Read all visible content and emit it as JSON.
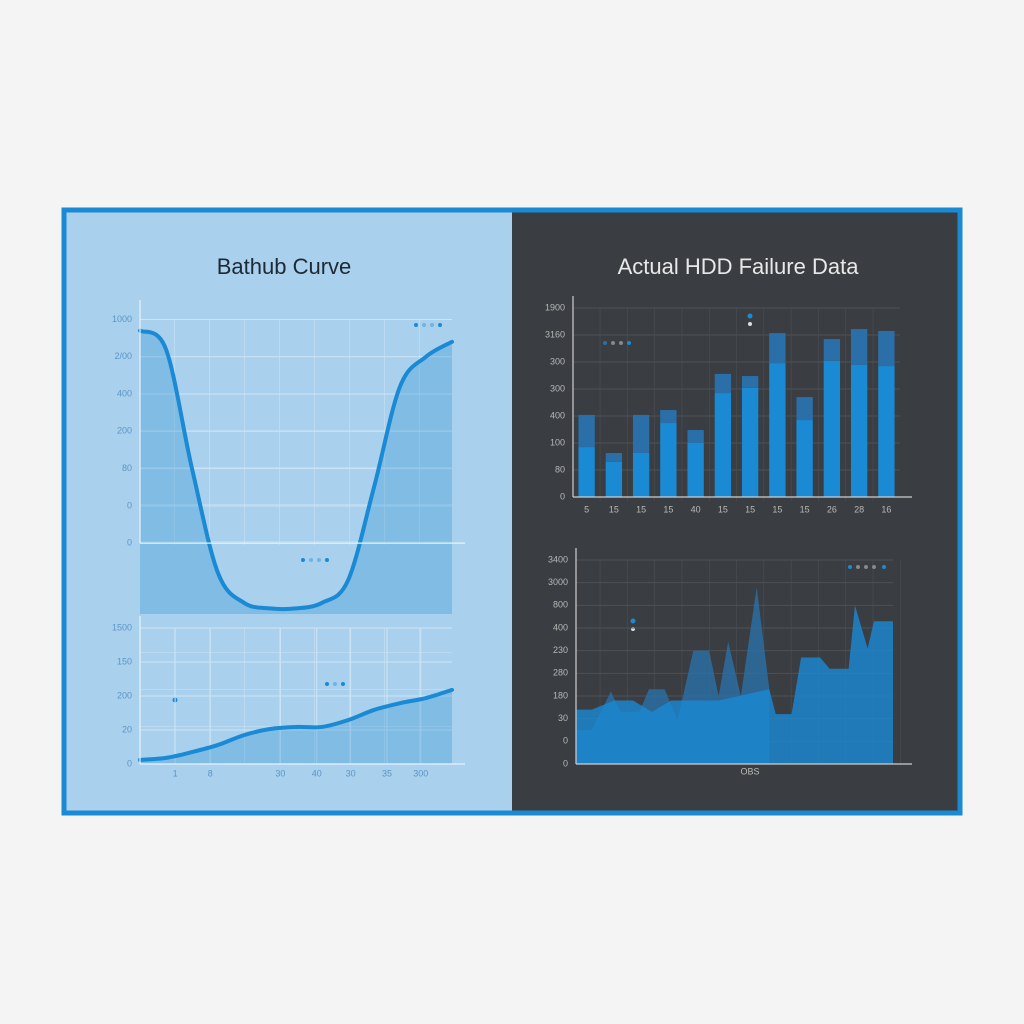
{
  "chart_data": [
    {
      "type": "line",
      "title": "Bathub Curve",
      "color": "#1a8ad4",
      "x": [
        0,
        1,
        2,
        3,
        4,
        5,
        6,
        7,
        8,
        9,
        10,
        11,
        12
      ],
      "xlim": [
        0,
        12
      ],
      "values": [
        5.7,
        5.2,
        2.0,
        -0.8,
        -1.6,
        -1.75,
        -1.75,
        -1.6,
        -1.0,
        1.5,
        4.2,
        5.0,
        5.4
      ],
      "ylim": [
        -1.9,
        6.2
      ],
      "yticks": [
        {
          "value": 6,
          "label": "1000"
        },
        {
          "value": 5,
          "label": "2/00"
        },
        {
          "value": 4,
          "label": "400"
        },
        {
          "value": 3,
          "label": "200"
        },
        {
          "value": 2,
          "label": "80"
        },
        {
          "value": 1,
          "label": "0"
        },
        0
      ]
    },
    {
      "type": "line",
      "color": "#1a8ad4",
      "x": [
        0,
        1,
        2,
        3,
        4,
        5,
        6,
        7,
        8,
        9,
        10,
        11,
        12
      ],
      "xlim": [
        0,
        12
      ],
      "values": [
        0.12,
        0.18,
        0.35,
        0.56,
        0.85,
        1.03,
        1.09,
        1.09,
        1.29,
        1.59,
        1.79,
        1.94,
        2.18
      ],
      "ylim": [
        0,
        4
      ],
      "yticks": [
        {
          "value": 4,
          "label": "1500"
        },
        {
          "value": 3,
          "label": "150"
        },
        {
          "value": 2,
          "label": "200"
        },
        {
          "value": 1,
          "label": "20"
        },
        0
      ],
      "xticks": [
        {
          "value": 1.35,
          "label": "1"
        },
        {
          "value": 2.7,
          "label": "8"
        },
        {
          "value": 5.4,
          "label": "30"
        },
        {
          "value": 6.8,
          "label": "40"
        },
        {
          "value": 8.1,
          "label": "30"
        },
        {
          "value": 9.5,
          "label": "35"
        },
        {
          "value": 10.8,
          "label": "300"
        }
      ]
    },
    {
      "type": "bar",
      "title": "Actual HDD Failure Data",
      "categories": [
        "5",
        "15",
        "15",
        "15",
        "40",
        "15",
        "15",
        "15",
        "15",
        "26",
        "28",
        "16"
      ],
      "series": [
        {
          "color": "#1a8ad4",
          "values": [
            1.85,
            1.3,
            1.63,
            2.74,
            2.0,
            3.85,
            4.04,
            4.96,
            2.85,
            5.04,
            4.9,
            4.85
          ]
        },
        {
          "color": "#2a6fa8",
          "values": [
            1.19,
            0.33,
            1.41,
            0.48,
            0.48,
            0.71,
            0.44,
            1.11,
            0.85,
            0.81,
            1.32,
            1.3
          ]
        }
      ],
      "ylim": [
        0,
        7
      ],
      "yticks": [
        {
          "value": 7,
          "label": "1900"
        },
        {
          "value": 6,
          "label": "3160"
        },
        {
          "value": 5,
          "label": "300"
        },
        {
          "value": 4,
          "label": "300"
        },
        {
          "value": 3,
          "label": "400"
        },
        {
          "value": 2,
          "label": "100"
        },
        {
          "value": 1,
          "label": "80"
        },
        0
      ]
    },
    {
      "type": "area",
      "x_label": "OBS",
      "xlim": [
        0,
        100
      ],
      "ylim": [
        0,
        9
      ],
      "series": [
        {
          "color": "#2a6fa8",
          "x": [
            0,
            5,
            11,
            14,
            20,
            23,
            28,
            32,
            37,
            42,
            45,
            48,
            52,
            57,
            61
          ],
          "values": [
            1.5,
            1.5,
            3.2,
            2.3,
            2.3,
            3.3,
            3.3,
            1.9,
            5.0,
            5.0,
            3.0,
            5.4,
            3.0,
            7.8,
            3.3
          ]
        },
        {
          "color": "#1a8ad4",
          "x": [
            0,
            5,
            12,
            18,
            24,
            30,
            38,
            45,
            61,
            63,
            68,
            71,
            77,
            80,
            86,
            88,
            92,
            94,
            100
          ],
          "values": [
            2.4,
            2.4,
            2.8,
            2.8,
            2.3,
            2.8,
            2.8,
            2.8,
            3.3,
            2.2,
            2.2,
            4.7,
            4.7,
            4.2,
            4.2,
            7.0,
            5.1,
            6.3,
            6.3
          ]
        }
      ],
      "yticks": [
        {
          "value": 9,
          "label": "3400"
        },
        {
          "value": 8,
          "label": "3000"
        },
        {
          "value": 7,
          "label": "800"
        },
        {
          "value": 6,
          "label": "400"
        },
        {
          "value": 5,
          "label": "230"
        },
        {
          "value": 4,
          "label": "280"
        },
        {
          "value": 3,
          "label": "180"
        },
        {
          "value": 2,
          "label": "30"
        },
        {
          "value": 1,
          "label": "0"
        },
        0
      ]
    }
  ]
}
